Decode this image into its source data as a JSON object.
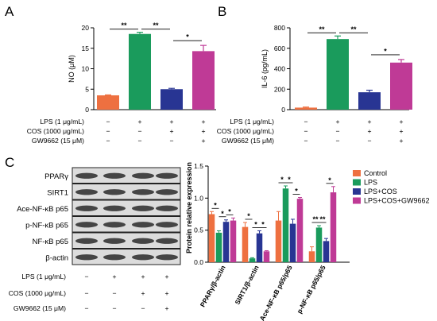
{
  "panels": {
    "a": "A",
    "b": "B",
    "c": "C"
  },
  "colors": {
    "control": "#ee7040",
    "lps": "#1a9b5c",
    "lps_cos": "#283593",
    "lps_cos_gw": "#bf3a96",
    "axis": "#000000"
  },
  "conditions": {
    "rows": [
      {
        "label": "LPS (1 μg/mL)",
        "marks": [
          "−",
          "+",
          "+",
          "+"
        ]
      },
      {
        "label": "COS (1000 μg/mL)",
        "marks": [
          "−",
          "−",
          "+",
          "+"
        ]
      },
      {
        "label": "GW9662 (15 μM)",
        "marks": [
          "−",
          "−",
          "−",
          "+"
        ]
      }
    ]
  },
  "sig_label": {
    "two": "**",
    "one": "*"
  },
  "chart_data": [
    {
      "type": "bar",
      "panel": "A",
      "ylabel": "NO (μM)",
      "ylim": [
        0,
        20
      ],
      "yticks": [
        "0",
        "5",
        "10",
        "15",
        "20"
      ],
      "values": [
        3.5,
        18.5,
        5.0,
        14.3
      ],
      "errors": [
        0.1,
        0.4,
        0.2,
        1.4
      ],
      "bar_colors": [
        "#ee7040",
        "#1a9b5c",
        "#283593",
        "#bf3a96"
      ],
      "significance": [
        {
          "from": 0,
          "to": 1,
          "label": "**"
        },
        {
          "from": 1,
          "to": 2,
          "label": "**"
        },
        {
          "from": 2,
          "to": 3,
          "label": "*"
        }
      ]
    },
    {
      "type": "bar",
      "panel": "B",
      "ylabel": "IL-6 (pg/mL)",
      "ylim": [
        0,
        800
      ],
      "yticks": [
        "0",
        "200",
        "400",
        "600",
        "800"
      ],
      "values": [
        20,
        690,
        170,
        460
      ],
      "errors": [
        5,
        30,
        20,
        30
      ],
      "bar_colors": [
        "#ee7040",
        "#1a9b5c",
        "#283593",
        "#bf3a96"
      ],
      "significance": [
        {
          "from": 0,
          "to": 1,
          "label": "**"
        },
        {
          "from": 1,
          "to": 2,
          "label": "**"
        },
        {
          "from": 2,
          "to": 3,
          "label": "*"
        }
      ]
    },
    {
      "type": "bar",
      "panel": "C",
      "ylabel": "Protein relative expression",
      "ylim": [
        0,
        1.5
      ],
      "yticks": [
        "0.0",
        "0.5",
        "1.0",
        "1.5"
      ],
      "categories": [
        "PPARγ/β-actin",
        "SIRT1/β-actin",
        "Ace-NF-κB p65/p65",
        "p-NF-κB p65/p65"
      ],
      "series": [
        {
          "name": "Control",
          "values": [
            0.75,
            0.55,
            0.65,
            0.17
          ],
          "errors": [
            0.04,
            0.07,
            0.14,
            0.07
          ]
        },
        {
          "name": "LPS",
          "values": [
            0.46,
            0.06,
            1.15,
            0.54
          ],
          "errors": [
            0.03,
            0.01,
            0.04,
            0.03
          ]
        },
        {
          "name": "LPS+COS",
          "values": [
            0.63,
            0.45,
            0.6,
            0.33
          ],
          "errors": [
            0.03,
            0.04,
            0.07,
            0.04
          ]
        },
        {
          "name": "LPS+COS+GW9662",
          "values": [
            0.65,
            0.17,
            0.99,
            1.09
          ],
          "errors": [
            0.04,
            0.01,
            0.02,
            0.09
          ]
        }
      ],
      "legend": "top-right"
    }
  ],
  "blot": {
    "labels": [
      "PPARγ",
      "SIRT1",
      "Ace-NF-κB p65",
      "p-NF-κB p65",
      "NF-κB p65",
      "β-actin"
    ]
  }
}
